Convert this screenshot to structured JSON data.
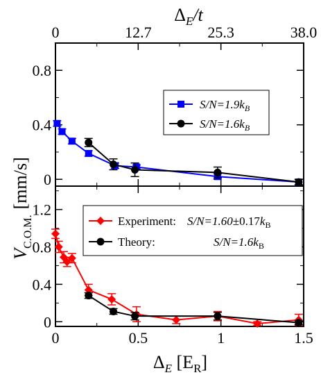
{
  "chart_data": [
    {
      "type": "line",
      "panel": "top",
      "top_axis": {
        "label_main": "Δ",
        "label_sub": "E",
        "label_rest": "/t",
        "ticks": [
          {
            "x": 0,
            "label": "0"
          },
          {
            "x": 0.5,
            "label": "12.7"
          },
          {
            "x": 1.0,
            "label": "25.3"
          },
          {
            "x": 1.5,
            "label": "38.0"
          }
        ]
      },
      "xlim": [
        0,
        1.5
      ],
      "ylim": [
        -0.05,
        1.0
      ],
      "yticks": [
        {
          "y": 0,
          "label": "0"
        },
        {
          "y": 0.4,
          "label": "0.4"
        },
        {
          "y": 0.8,
          "label": "0.8"
        }
      ],
      "legend_position": "right",
      "series": [
        {
          "name": "S/N=1.9k",
          "name_sub": "B",
          "color": "#0000ff",
          "marker": "square",
          "points": [
            {
              "x": 0.01,
              "y": 0.41,
              "err": 0.02
            },
            {
              "x": 0.04,
              "y": 0.35,
              "err": 0.02
            },
            {
              "x": 0.1,
              "y": 0.28,
              "err": 0.02
            },
            {
              "x": 0.2,
              "y": 0.19,
              "err": 0.02
            },
            {
              "x": 0.36,
              "y": 0.1,
              "err": 0.02
            },
            {
              "x": 0.49,
              "y": 0.09,
              "err": 0.015
            },
            {
              "x": 0.98,
              "y": 0.02,
              "err": 0.02
            },
            {
              "x": 1.47,
              "y": -0.02,
              "err": 0.02
            }
          ]
        },
        {
          "name": "S/N=1.6k",
          "name_sub": "B",
          "color": "#000000",
          "marker": "circle",
          "points": [
            {
              "x": 0.2,
              "y": 0.27,
              "err": 0.03
            },
            {
              "x": 0.35,
              "y": 0.11,
              "err": 0.04
            },
            {
              "x": 0.48,
              "y": 0.07,
              "err": 0.05
            },
            {
              "x": 0.98,
              "y": 0.05,
              "err": 0.04
            },
            {
              "x": 1.47,
              "y": -0.02,
              "err": 0.02
            }
          ]
        }
      ]
    },
    {
      "type": "line",
      "panel": "bottom",
      "xlabel_main": "Δ",
      "xlabel_sub": "E",
      "xlabel_rest": " [E",
      "xlabel_unit_sub": "R",
      "xlabel_close": "]",
      "xlim": [
        0,
        1.5
      ],
      "ylim": [
        -0.05,
        1.45
      ],
      "xticks": [
        {
          "x": 0,
          "label": "0"
        },
        {
          "x": 0.5,
          "label": "0.5"
        },
        {
          "x": 1.0,
          "label": "1"
        },
        {
          "x": 1.5,
          "label": "1.5"
        }
      ],
      "yticks": [
        {
          "y": 0,
          "label": "0"
        },
        {
          "y": 0.4,
          "label": "0.4"
        },
        {
          "y": 0.8,
          "label": "0.8"
        },
        {
          "y": 1.2,
          "label": "1.2"
        }
      ],
      "legend_position": "top-right",
      "series": [
        {
          "name": "Experiment:",
          "name_italic": "S/N=1.60",
          "name_extra": "±0.17",
          "name_italic2": "k",
          "name_sub": "B",
          "color": "#ff0000",
          "marker": "diamond",
          "points": [
            {
              "x": 0.0,
              "y": 0.94,
              "err": 0.05
            },
            {
              "x": 0.02,
              "y": 0.8,
              "err": 0.06
            },
            {
              "x": 0.05,
              "y": 0.69,
              "err": 0.06
            },
            {
              "x": 0.07,
              "y": 0.64,
              "err": 0.05
            },
            {
              "x": 0.1,
              "y": 0.68,
              "err": 0.05
            },
            {
              "x": 0.2,
              "y": 0.34,
              "err": 0.06
            },
            {
              "x": 0.34,
              "y": 0.24,
              "err": 0.06
            },
            {
              "x": 0.49,
              "y": 0.08,
              "err": 0.08
            },
            {
              "x": 0.73,
              "y": 0.02,
              "err": 0.04
            },
            {
              "x": 0.98,
              "y": 0.06,
              "err": 0.05
            },
            {
              "x": 1.22,
              "y": -0.02,
              "err": 0.02
            },
            {
              "x": 1.47,
              "y": 0.02,
              "err": 0.06
            }
          ]
        },
        {
          "name": "Theory:",
          "name_italic": "S/N=1.6k",
          "name_sub": "B",
          "color": "#000000",
          "marker": "circle",
          "points": [
            {
              "x": 0.2,
              "y": 0.28,
              "err": 0.03
            },
            {
              "x": 0.35,
              "y": 0.11,
              "err": 0.03
            },
            {
              "x": 0.48,
              "y": 0.06,
              "err": 0.04
            },
            {
              "x": 0.98,
              "y": 0.06,
              "err": 0.04
            },
            {
              "x": 1.47,
              "y": -0.01,
              "err": 0.02
            }
          ]
        }
      ]
    }
  ],
  "shared_ylabel": {
    "main": "V",
    "sub": "C.O.M.",
    "unit": "[mm/s]"
  }
}
